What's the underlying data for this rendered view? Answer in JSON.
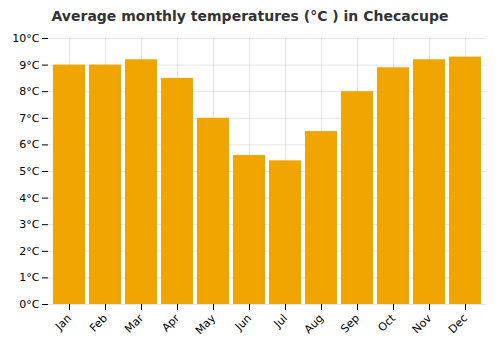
{
  "chart_data": {
    "type": "bar",
    "title": "Average monthly temperatures (°C ) in Checacupe",
    "categories": [
      "Jan",
      "Feb",
      "Mar",
      "Apr",
      "May",
      "Jun",
      "Jul",
      "Aug",
      "Sep",
      "Oct",
      "Nov",
      "Dec"
    ],
    "values": [
      9.0,
      9.0,
      9.2,
      8.5,
      7.0,
      5.6,
      5.4,
      6.5,
      8.0,
      8.9,
      9.2,
      9.3
    ],
    "color": "#F0A500",
    "ylim": [
      0,
      10
    ],
    "yticks": [
      {
        "value": 0,
        "label": "0°C"
      },
      {
        "value": 1,
        "label": "1°C"
      },
      {
        "value": 2,
        "label": "2°C"
      },
      {
        "value": 3,
        "label": "3°C"
      },
      {
        "value": 4,
        "label": "4°C"
      },
      {
        "value": 5,
        "label": "5°C"
      },
      {
        "value": 6,
        "label": "6°C"
      },
      {
        "value": 7,
        "label": "7°C"
      },
      {
        "value": 8,
        "label": "8°C"
      },
      {
        "value": 9,
        "label": "9°C"
      },
      {
        "value": 10,
        "label": "10°C"
      }
    ],
    "grid": true
  }
}
